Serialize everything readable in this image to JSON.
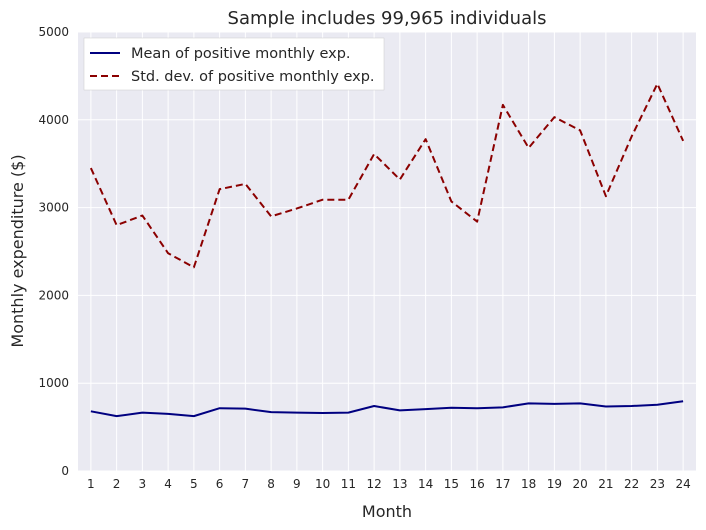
{
  "chart_data": {
    "type": "line",
    "title": "Sample includes 99,965 individuals",
    "xlabel": "Month",
    "ylabel": "Monthly expenditure ($)",
    "x": [
      1,
      2,
      3,
      4,
      5,
      6,
      7,
      8,
      9,
      10,
      11,
      12,
      13,
      14,
      15,
      16,
      17,
      18,
      19,
      20,
      21,
      22,
      23,
      24
    ],
    "ylim": [
      0,
      5000
    ],
    "yticks": [
      0,
      1000,
      2000,
      3000,
      4000,
      5000
    ],
    "grid": true,
    "legend_position": "top-left",
    "series": [
      {
        "name": "Mean of positive monthly exp.",
        "color": "#000080",
        "style": "solid",
        "values": [
          680,
          625,
          665,
          650,
          625,
          715,
          710,
          670,
          665,
          660,
          665,
          740,
          690,
          705,
          720,
          715,
          725,
          770,
          765,
          770,
          735,
          740,
          755,
          795
        ]
      },
      {
        "name": "Std. dev. of positive monthly exp.",
        "color": "#8b0000",
        "style": "dashed",
        "values": [
          3450,
          2800,
          2910,
          2480,
          2320,
          3210,
          3270,
          2900,
          2990,
          3090,
          3090,
          3610,
          3320,
          3780,
          3070,
          2840,
          4170,
          3680,
          4030,
          3880,
          3130,
          3810,
          4410,
          3760
        ]
      }
    ]
  }
}
